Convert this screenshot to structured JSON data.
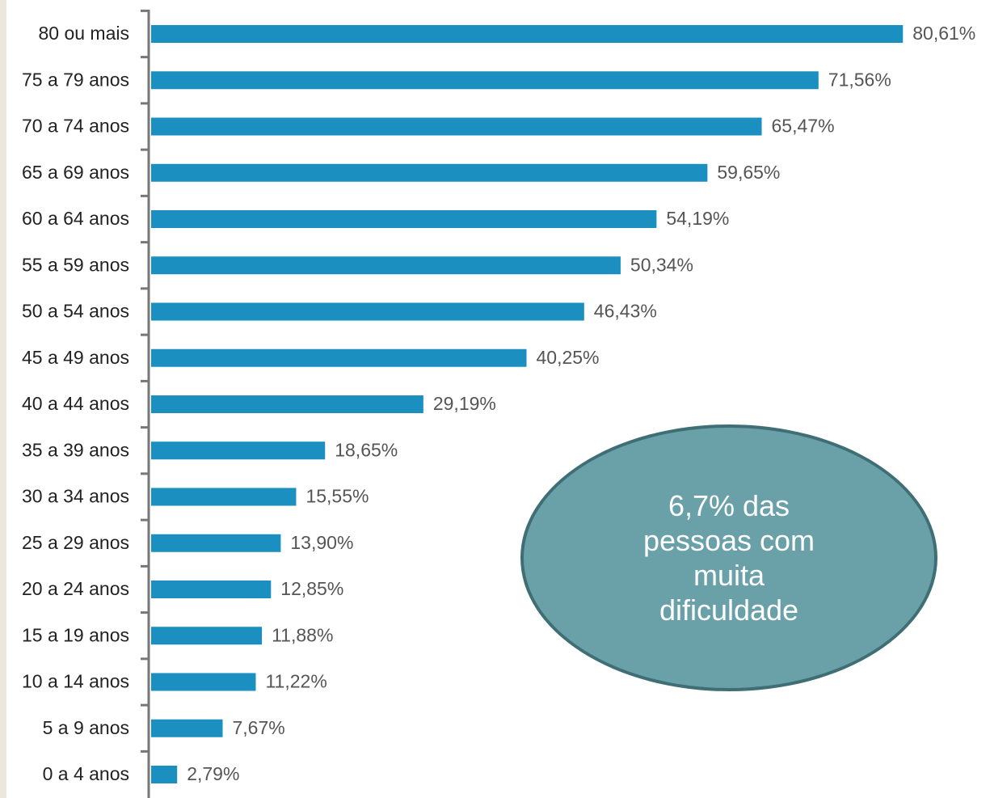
{
  "chart_data": {
    "type": "barh",
    "categories": [
      "80 ou mais",
      "75 a 79 anos",
      "70 a 74 anos",
      "65 a 69 anos",
      "60 a 64 anos",
      "55 a 59 anos",
      "50 a 54 anos",
      "45 a 49 anos",
      "40 a 44 anos",
      "35 a 39 anos",
      "30 a 34 anos",
      "25 a 29 anos",
      "20 a 24 anos",
      "15 a 19 anos",
      "10 a 14 anos",
      "5 a 9 anos",
      "0 a 4 anos"
    ],
    "values": [
      80.61,
      71.56,
      65.47,
      59.65,
      54.19,
      50.34,
      46.43,
      40.25,
      29.19,
      18.65,
      15.55,
      13.9,
      12.85,
      11.88,
      11.22,
      7.67,
      2.79
    ],
    "value_labels": [
      "80,61%",
      "71,56%",
      "65,47%",
      "59,65%",
      "54,19%",
      "50,34%",
      "46,43%",
      "40,25%",
      "29,19%",
      "18,65%",
      "15,55%",
      "13,90%",
      "12,85%",
      "11,88%",
      "11,22%",
      "7,67%",
      "2,79%"
    ],
    "color": "#1a8fc0",
    "annotation": "6,7% das pessoas com muita dificuldade"
  }
}
